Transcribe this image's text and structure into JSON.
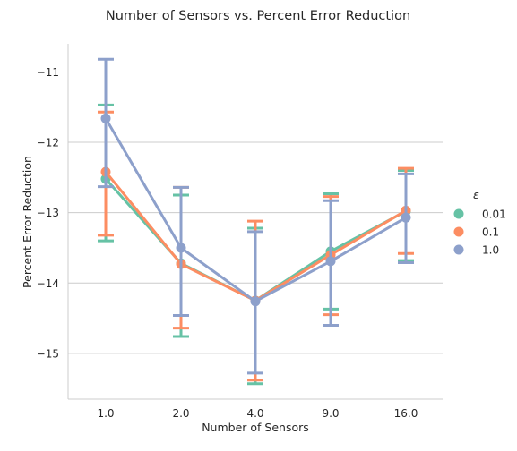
{
  "chart_data": {
    "type": "line",
    "title": "Number of Sensors vs. Percent Error Reduction",
    "xlabel": "Number of Sensors",
    "ylabel": "Percent Error Reduction",
    "categories": [
      "1.0",
      "2.0",
      "4.0",
      "9.0",
      "16.0"
    ],
    "ylim": [
      -15.65,
      -10.6
    ],
    "yticks": [
      -11,
      -12,
      -13,
      -14,
      -15
    ],
    "ytick_labels": [
      "−11",
      "−12",
      "−13",
      "−14",
      "−15"
    ],
    "grid": "horizontal",
    "legend": {
      "title": "ε",
      "placement": "right"
    },
    "series": [
      {
        "name": "0.01",
        "color": "#66c2a5",
        "values": [
          -12.52,
          -13.72,
          -14.25,
          -13.55,
          -12.98
        ],
        "err_low": [
          -13.4,
          -14.76,
          -15.43,
          -14.37,
          -13.68
        ],
        "err_high": [
          -11.47,
          -12.75,
          -13.22,
          -12.73,
          -12.4
        ]
      },
      {
        "name": "0.1",
        "color": "#fc8d62",
        "values": [
          -12.42,
          -13.73,
          -14.25,
          -13.6,
          -12.97
        ],
        "err_low": [
          -13.32,
          -14.64,
          -15.38,
          -14.45,
          -13.58
        ],
        "err_high": [
          -11.57,
          -12.64,
          -13.12,
          -12.77,
          -12.37
        ]
      },
      {
        "name": "1.0",
        "color": "#8da0cb",
        "values": [
          -11.66,
          -13.5,
          -14.26,
          -13.69,
          -13.07
        ],
        "err_low": [
          -12.63,
          -14.46,
          -15.28,
          -14.6,
          -13.71
        ],
        "err_high": [
          -10.82,
          -12.64,
          -13.27,
          -12.83,
          -12.45
        ]
      }
    ]
  }
}
